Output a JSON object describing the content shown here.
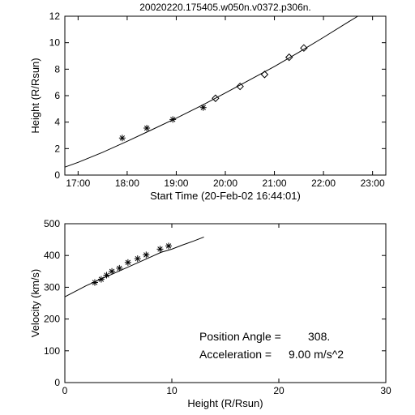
{
  "title": "20020220.175405.w050n.v0372.p306n.",
  "top": {
    "type": "line+scatter",
    "xlabel": "Start Time (20-Feb-02 16:44:01)",
    "ylabel": "Height (R/Rsun)",
    "xlim": [
      16.73,
      23.27
    ],
    "ylim": [
      0,
      12
    ],
    "xticks": [
      17,
      18,
      19,
      20,
      21,
      22,
      23
    ],
    "xtick_labels": [
      "17:00",
      "18:00",
      "19:00",
      "20:00",
      "21:00",
      "22:00",
      "23:00"
    ],
    "yticks": [
      0,
      2,
      4,
      6,
      8,
      10,
      12
    ],
    "ytick_labels": [
      "0",
      "2",
      "4",
      "6",
      "8",
      "10",
      "12"
    ],
    "line_color": "#000000",
    "line_width": 1,
    "marker_color": "#000000",
    "background": "#ffffff",
    "fit_curve": [
      [
        16.73,
        0.6
      ],
      [
        17.0,
        0.96
      ],
      [
        17.5,
        1.72
      ],
      [
        18.0,
        2.55
      ],
      [
        18.5,
        3.42
      ],
      [
        19.0,
        4.3
      ],
      [
        19.5,
        5.22
      ],
      [
        20.0,
        6.2
      ],
      [
        20.5,
        7.2
      ],
      [
        21.0,
        8.2
      ],
      [
        21.5,
        9.28
      ],
      [
        22.0,
        10.4
      ],
      [
        22.5,
        11.55
      ],
      [
        22.7,
        12.0
      ]
    ],
    "asterisk_points": [
      [
        17.9,
        2.8
      ],
      [
        18.4,
        3.55
      ],
      [
        18.93,
        4.2
      ],
      [
        19.55,
        5.1
      ]
    ],
    "diamond_points": [
      [
        19.8,
        5.8
      ],
      [
        20.3,
        6.7
      ],
      [
        20.8,
        7.6
      ],
      [
        21.3,
        8.9
      ],
      [
        21.6,
        9.6
      ]
    ]
  },
  "bottom": {
    "type": "line+scatter",
    "xlabel": "Height (R/Rsun)",
    "ylabel": "Velocity (km/s)",
    "xlim": [
      0,
      30
    ],
    "ylim": [
      0,
      500
    ],
    "xticks": [
      0,
      10,
      20,
      30
    ],
    "xtick_labels": [
      "0",
      "10",
      "20",
      "30"
    ],
    "yticks": [
      0,
      100,
      200,
      300,
      400,
      500
    ],
    "ytick_labels": [
      "0",
      "100",
      "200",
      "300",
      "400",
      "500"
    ],
    "line_color": "#000000",
    "line_width": 1,
    "marker_color": "#000000",
    "background": "#ffffff",
    "fit_curve": [
      [
        0,
        270
      ],
      [
        2,
        305
      ],
      [
        3,
        320
      ],
      [
        4,
        335
      ],
      [
        5,
        350
      ],
      [
        6,
        365
      ],
      [
        7,
        380
      ],
      [
        8,
        395
      ],
      [
        9,
        410
      ],
      [
        10,
        420
      ],
      [
        11,
        433
      ],
      [
        12,
        445
      ],
      [
        13,
        458
      ]
    ],
    "asterisk_points": [
      [
        2.8,
        315
      ],
      [
        3.4,
        325
      ],
      [
        3.9,
        338
      ],
      [
        4.4,
        350
      ],
      [
        5.1,
        360
      ],
      [
        5.9,
        378
      ],
      [
        6.8,
        390
      ],
      [
        7.6,
        402
      ],
      [
        8.9,
        420
      ],
      [
        9.7,
        430
      ]
    ],
    "annot1_label": "Position Angle =",
    "annot1_value": "  308.",
    "annot2_label": "Acceleration =",
    "annot2_value": "   9.00 m/s^2"
  }
}
